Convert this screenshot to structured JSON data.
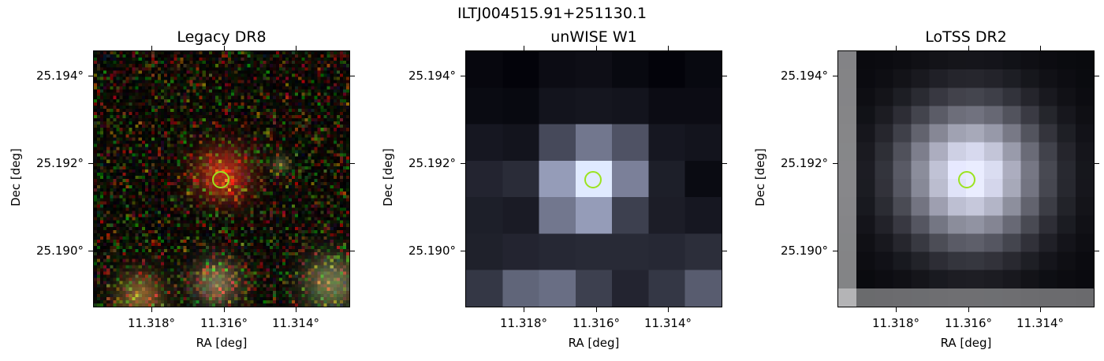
{
  "figure": {
    "title": "ILTJ004515.91+251130.1",
    "x_axis_label": "RA [deg]",
    "y_axis_label": "Dec [deg]",
    "x_ticks": [
      "11.318°",
      "11.316°",
      "11.314°"
    ],
    "y_ticks": [
      "25.194°",
      "25.192°",
      "25.190°"
    ],
    "marker_color": "#9be31f"
  },
  "panels": [
    {
      "id": "legacy",
      "title": "Legacy DR8",
      "survey_style": "rgb-noise"
    },
    {
      "id": "unwise",
      "title": "unWISE W1",
      "survey_style": "coarse-pixels"
    },
    {
      "id": "lotss",
      "title": "LoTSS DR2",
      "survey_style": "radio-blob"
    }
  ]
}
